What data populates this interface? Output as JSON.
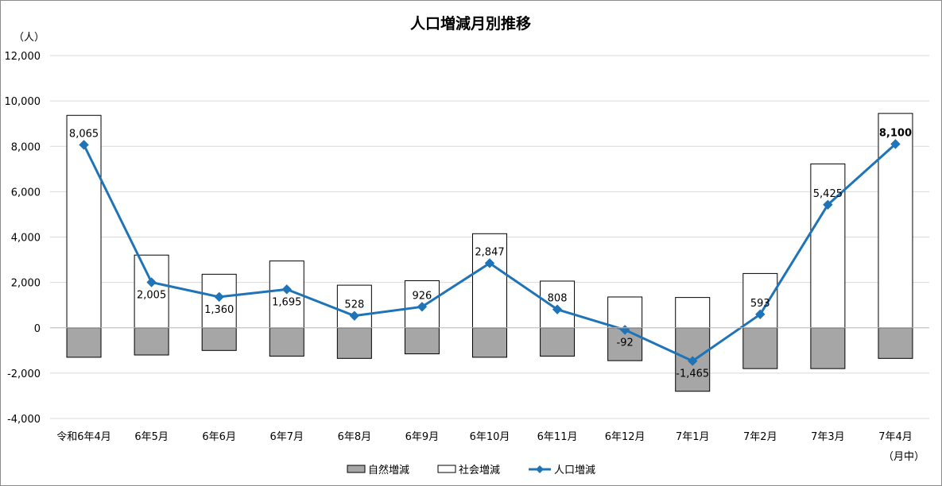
{
  "chart_data": {
    "type": "bar",
    "title": "人口増減月別推移",
    "y_unit_label": "（人）",
    "x_unit_label": "（月中）",
    "ylim": [
      -4000,
      12000
    ],
    "y_ticks": [
      -4000,
      -2000,
      0,
      2000,
      4000,
      6000,
      8000,
      10000,
      12000
    ],
    "y_tick_labels": [
      "-4,000",
      "-2,000",
      "0",
      "2,000",
      "4,000",
      "6,000",
      "8,000",
      "10,000",
      "12,000"
    ],
    "grid": true,
    "legend_position": "bottom",
    "categories": [
      "令和6年4月",
      "6年5月",
      "6年6月",
      "6年7月",
      "6年8月",
      "6年9月",
      "6年10月",
      "6年11月",
      "6年12月",
      "7年1月",
      "7年2月",
      "7年3月",
      "7年4月"
    ],
    "series": [
      {
        "name": "自然増減",
        "kind": "bar",
        "color": "#a6a6a6",
        "values": [
          -1300,
          -1200,
          -1000,
          -1250,
          -1350,
          -1150,
          -1300,
          -1250,
          -1450,
          -2800,
          -1800,
          -1800,
          -1350
        ]
      },
      {
        "name": "社会増減",
        "kind": "bar",
        "color": "#ffffff",
        "values": [
          9365,
          3205,
          2360,
          2945,
          1878,
          2076,
          4147,
          2058,
          1358,
          1335,
          2393,
          7225,
          9450
        ]
      },
      {
        "name": "人口増減",
        "kind": "line",
        "color": "#1f74b8",
        "values": [
          8065,
          2005,
          1360,
          1695,
          528,
          926,
          2847,
          808,
          -92,
          -1465,
          593,
          5425,
          8100
        ],
        "labels": [
          "8,065",
          "2,005",
          "1,360",
          "1,695",
          "528",
          "926",
          "2,847",
          "808",
          "-92",
          "-1,465",
          "593",
          "5,425",
          "8,100"
        ]
      }
    ]
  }
}
